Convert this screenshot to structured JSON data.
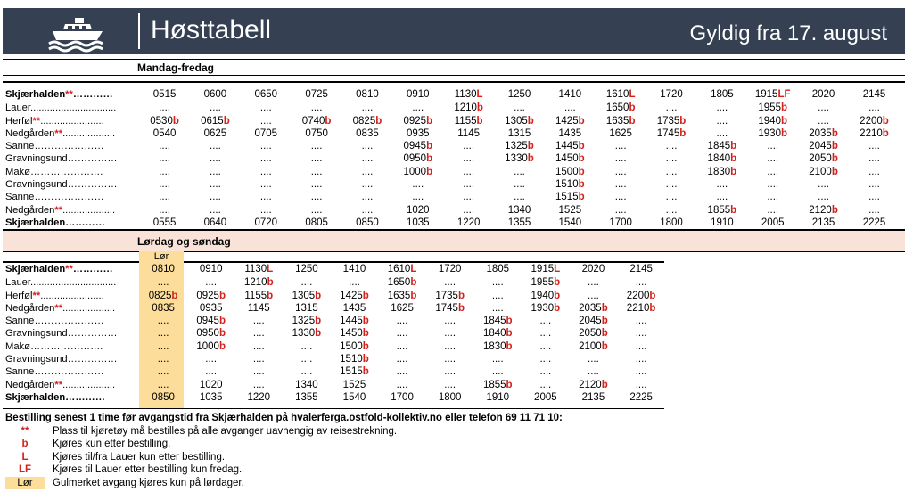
{
  "header": {
    "title": "Høsttabell",
    "valid_from": "Gyldig fra 17. august",
    "logo_icon": "ferry-boat-icon"
  },
  "weekday": {
    "title": "Mandag-fredag",
    "rows": [
      {
        "stop": "Skjærhalden",
        "mark": "**",
        "fill": "…………",
        "bold": true,
        "times": [
          "0515",
          "0600",
          "0650",
          "0725",
          "0810",
          "0910",
          "1130L",
          "1250",
          "1410",
          "1610L",
          "1720",
          "1805",
          "1915LF",
          "2020",
          "2145"
        ]
      },
      {
        "stop": "Lauer",
        "mark": "",
        "fill": "...............................",
        "bold": false,
        "times": [
          "....",
          "....",
          "....",
          "....",
          "....",
          "....",
          "1210b",
          "....",
          "....",
          "1650b",
          "....",
          "....",
          "1955b",
          "....",
          "...."
        ]
      },
      {
        "stop": "Herføl",
        "mark": "**",
        "fill": ".......................",
        "bold": false,
        "times": [
          "0530b",
          "0615b",
          "....",
          "0740b",
          "0825b",
          "0925b",
          "1155b",
          "1305b",
          "1425b",
          "1635b",
          "1735b",
          "....",
          "1940b",
          "....",
          "2200b"
        ]
      },
      {
        "stop": "Nedgården",
        "mark": "**",
        "fill": "...................",
        "bold": false,
        "times": [
          "0540",
          "0625",
          "0705",
          "0750",
          "0835",
          "0935",
          "1145",
          "1315",
          "1435",
          "1625",
          "1745b",
          "....",
          "1930b",
          "2035b",
          "2210b"
        ]
      },
      {
        "stop": "Sanne",
        "mark": "",
        "fill": "…………………",
        "bold": false,
        "times": [
          "....",
          "....",
          "....",
          "....",
          "....",
          "0945b",
          "....",
          "1325b",
          "1445b",
          "....",
          "....",
          "1845b",
          "....",
          "2045b",
          "...."
        ]
      },
      {
        "stop": "Gravningsund",
        "mark": "",
        "fill": "……………",
        "bold": false,
        "times": [
          "....",
          "....",
          "....",
          "....",
          "....",
          "0950b",
          "....",
          "1330b",
          "1450b",
          "....",
          "....",
          "1840b",
          "....",
          "2050b",
          "...."
        ]
      },
      {
        "stop": "Makø",
        "mark": "",
        "fill": "………………….",
        "bold": false,
        "times": [
          "....",
          "....",
          "....",
          "....",
          "....",
          "1000b",
          "....",
          "....",
          "1500b",
          "....",
          "....",
          "1830b",
          "....",
          "2100b",
          "...."
        ]
      },
      {
        "stop": "Gravningsund",
        "mark": "",
        "fill": "……………",
        "bold": false,
        "times": [
          "....",
          "....",
          "....",
          "....",
          "....",
          "....",
          "....",
          "....",
          "1510b",
          "....",
          "....",
          "....",
          "....",
          "....",
          "...."
        ]
      },
      {
        "stop": "Sanne",
        "mark": "",
        "fill": "…………………",
        "bold": false,
        "times": [
          "....",
          "....",
          "....",
          "....",
          "....",
          "....",
          "....",
          "....",
          "1515b",
          "....",
          "....",
          "....",
          "....",
          "....",
          "...."
        ]
      },
      {
        "stop": "Nedgården",
        "mark": "**",
        "fill": "...................",
        "bold": false,
        "times": [
          "....",
          "....",
          "....",
          "....",
          "....",
          "1020",
          "....",
          "1340",
          "1525",
          "....",
          "....",
          "1855b",
          "....",
          "2120b",
          "...."
        ]
      },
      {
        "stop": "Skjærhalden",
        "mark": "",
        "fill": "…………",
        "bold": true,
        "times": [
          "0555",
          "0640",
          "0720",
          "0805",
          "0850",
          "1035",
          "1220",
          "1355",
          "1540",
          "1700",
          "1800",
          "1910",
          "2005",
          "2135",
          "2225"
        ]
      }
    ]
  },
  "weekend": {
    "title": "Lørdag og søndag",
    "lor_label": "Lør",
    "rows": [
      {
        "stop": "Skjærhalden",
        "mark": "**",
        "fill": "…………",
        "bold": true,
        "times": [
          "0810",
          "0910",
          "1130L",
          "1250",
          "1410",
          "1610L",
          "1720",
          "1805",
          "1915L",
          "2020",
          "2145"
        ]
      },
      {
        "stop": "Lauer",
        "mark": "",
        "fill": "...............................",
        "bold": false,
        "times": [
          "....",
          "....",
          "1210b",
          "....",
          "....",
          "1650b",
          "....",
          "....",
          "1955b",
          "....",
          "...."
        ]
      },
      {
        "stop": "Herføl",
        "mark": "**",
        "fill": ".......................",
        "bold": false,
        "times": [
          "0825b",
          "0925b",
          "1155b",
          "1305b",
          "1425b",
          "1635b",
          "1735b",
          "....",
          "1940b",
          "....",
          "2200b"
        ]
      },
      {
        "stop": "Nedgården",
        "mark": "**",
        "fill": "...................",
        "bold": false,
        "times": [
          "0835",
          "0935",
          "1145",
          "1315",
          "1435",
          "1625",
          "1745b",
          "....",
          "1930b",
          "2035b",
          "2210b"
        ]
      },
      {
        "stop": "Sanne",
        "mark": "",
        "fill": "…………………",
        "bold": false,
        "times": [
          "....",
          "0945b",
          "....",
          "1325b",
          "1445b",
          "....",
          "....",
          "1845b",
          "....",
          "2045b",
          "...."
        ]
      },
      {
        "stop": "Gravningsund",
        "mark": "",
        "fill": "……………",
        "bold": false,
        "times": [
          "....",
          "0950b",
          "....",
          "1330b",
          "1450b",
          "....",
          "....",
          "1840b",
          "....",
          "2050b",
          "...."
        ]
      },
      {
        "stop": "Makø",
        "mark": "",
        "fill": "………………….",
        "bold": false,
        "times": [
          "....",
          "1000b",
          "....",
          "....",
          "1500b",
          "....",
          "....",
          "1830b",
          "....",
          "2100b",
          "...."
        ]
      },
      {
        "stop": "Gravningsund",
        "mark": "",
        "fill": "……………",
        "bold": false,
        "times": [
          "....",
          "....",
          "....",
          "....",
          "1510b",
          "....",
          "....",
          "....",
          "....",
          "....",
          "...."
        ]
      },
      {
        "stop": "Sanne",
        "mark": "",
        "fill": "…………………",
        "bold": false,
        "times": [
          "....",
          "....",
          "....",
          "....",
          "1515b",
          "....",
          "....",
          "....",
          "....",
          "....",
          "...."
        ]
      },
      {
        "stop": "Nedgården",
        "mark": "**",
        "fill": "...................",
        "bold": false,
        "times": [
          "....",
          "1020",
          "....",
          "1340",
          "1525",
          "....",
          "....",
          "1855b",
          "....",
          "2120b",
          "...."
        ]
      },
      {
        "stop": "Skjærhalden",
        "mark": "",
        "fill": "…………",
        "bold": true,
        "times": [
          "0850",
          "1035",
          "1220",
          "1355",
          "1540",
          "1700",
          "1800",
          "1910",
          "2005",
          "2135",
          "2225"
        ]
      }
    ]
  },
  "legend": {
    "heading": "Bestilling senest 1 time før avgangstid fra Skjærhalden på hvalerferga.ostfold-kollektiv.no eller telefon 69 11 71 10:",
    "items": [
      {
        "symbol": "**",
        "text": "Plass til kjøretøy må bestilles på alle avganger uavhengig av reisestrekning."
      },
      {
        "symbol": "b",
        "text": "Kjøres kun etter bestilling."
      },
      {
        "symbol": "L",
        "text": "Kjøres til/fra Lauer kun etter bestilling."
      },
      {
        "symbol": "LF",
        "text": "Kjøres til Lauer etter bestilling kun fredag."
      },
      {
        "symbol": "Lør",
        "text": "Gulmerket avgang kjøres kun på lørdager.",
        "box": true
      }
    ]
  },
  "colors": {
    "header_bg": "#354052",
    "accent_red": "#d4211c",
    "saturday_yellow": "#fcde9a",
    "section_pink": "#f9e3d9"
  }
}
